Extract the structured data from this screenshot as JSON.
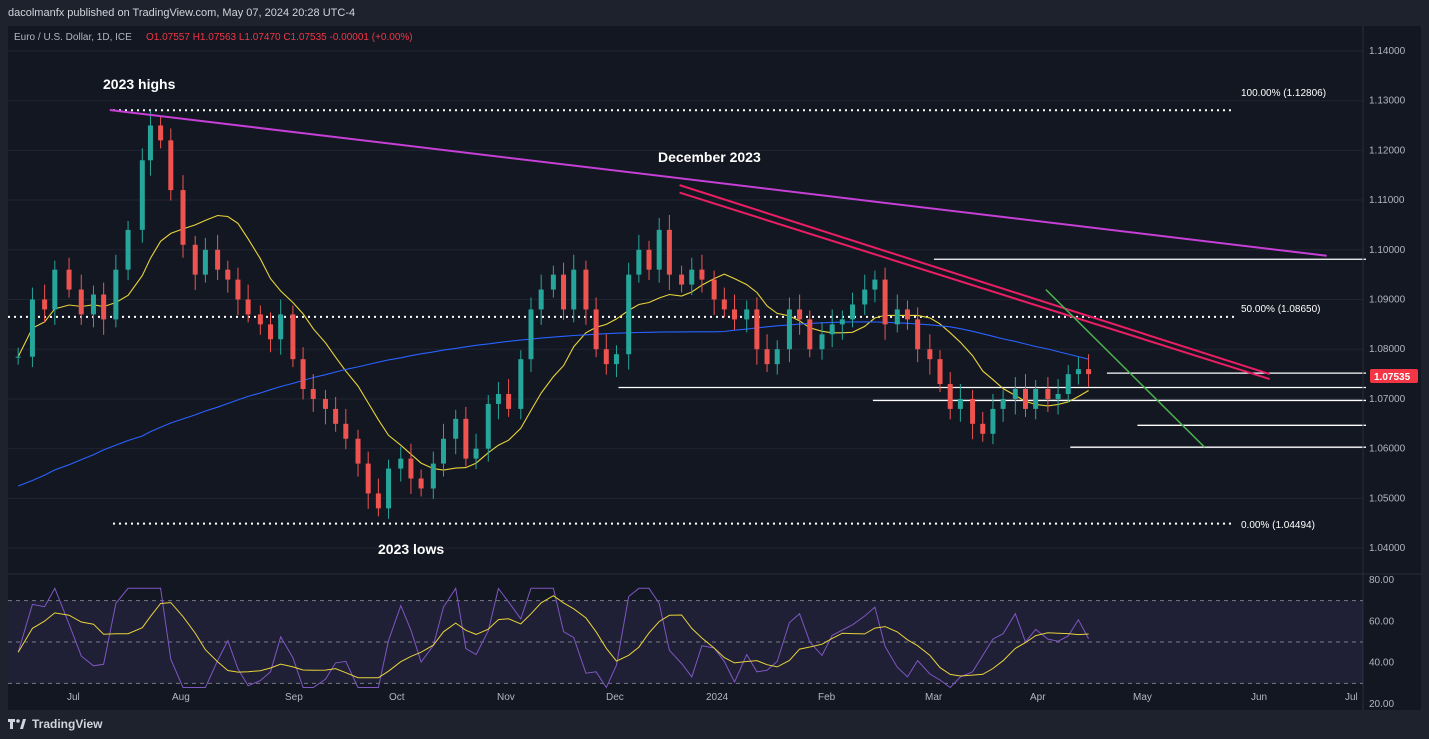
{
  "header": {
    "publisher": "dacolmanfx published on TradingView.com, May 07, 2024 20:28 UTC-4"
  },
  "legend": {
    "symbol": "Euro / U.S. Dollar, 1D, ICE",
    "ohlc": "O1.07557 H1.07563 L1.07470 C1.07535 -0.00001 (+0.00%)",
    "symbol_color": "#b2b5be",
    "value_color": "#f23645"
  },
  "footer": {
    "brand": "TradingView"
  },
  "colors": {
    "up": "#26a69a",
    "down": "#ef5350",
    "sma50": "#e8d33b",
    "sma200": "#2962ff",
    "long_trend": "#c63fd6",
    "channel": "#e91e63",
    "green_trend": "#4caf50",
    "rsi": "#7e57c2",
    "rsi_ma": "#e8d33b",
    "price_label_bg": "#f23645"
  },
  "chart_data": {
    "type": "candlestick",
    "title": "Euro / U.S. Dollar, 1D, ICE",
    "price_axis": {
      "min": 1.035,
      "max": 1.145,
      "ticks": [
        "1.14000",
        "1.13000",
        "1.12000",
        "1.11000",
        "1.10000",
        "1.09000",
        "1.08000",
        "1.07000",
        "1.06000",
        "1.05000",
        "1.04000"
      ]
    },
    "time_axis": {
      "labels": [
        "Jul",
        "Aug",
        "Sep",
        "Oct",
        "Nov",
        "Dec",
        "2024",
        "Feb",
        "Mar",
        "Apr",
        "May",
        "Jun",
        "Jul"
      ]
    },
    "current_price": "1.07535",
    "annotations": [
      "2023 highs",
      "December 2023",
      "2023 lows"
    ],
    "fibonacci": [
      {
        "label": "100.00% (1.12806)",
        "value": 1.12806
      },
      {
        "label": "50.00% (1.08650)",
        "value": 1.0865
      },
      {
        "label": "0.00% (1.04494)",
        "value": 1.04494
      }
    ],
    "horizontal_levels": [
      1.0981,
      1.0752,
      1.0723,
      1.0697,
      1.0647,
      1.0603
    ],
    "approx_closes": [
      [
        5,
        1.0785
      ],
      [
        12,
        1.09
      ],
      [
        18,
        1.088
      ],
      [
        23,
        1.096
      ],
      [
        30,
        1.092
      ],
      [
        36,
        1.087
      ],
      [
        42,
        1.091
      ],
      [
        47,
        1.086
      ],
      [
        53,
        1.096
      ],
      [
        59,
        1.104
      ],
      [
        66,
        1.118
      ],
      [
        70,
        1.125
      ],
      [
        75,
        1.122
      ],
      [
        80,
        1.112
      ],
      [
        86,
        1.101
      ],
      [
        92,
        1.095
      ],
      [
        97,
        1.1
      ],
      [
        103,
        1.096
      ],
      [
        108,
        1.094
      ],
      [
        113,
        1.09
      ],
      [
        118,
        1.087
      ],
      [
        124,
        1.085
      ],
      [
        129,
        1.082
      ],
      [
        134,
        1.087
      ],
      [
        140,
        1.078
      ],
      [
        145,
        1.072
      ],
      [
        150,
        1.07
      ],
      [
        156,
        1.068
      ],
      [
        161,
        1.065
      ],
      [
        166,
        1.062
      ],
      [
        172,
        1.057
      ],
      [
        177,
        1.051
      ],
      [
        182,
        1.048
      ],
      [
        187,
        1.056
      ],
      [
        193,
        1.058
      ],
      [
        198,
        1.054
      ],
      [
        203,
        1.052
      ],
      [
        209,
        1.057
      ],
      [
        214,
        1.062
      ],
      [
        220,
        1.066
      ],
      [
        225,
        1.058
      ],
      [
        230,
        1.06
      ],
      [
        236,
        1.069
      ],
      [
        241,
        1.071
      ],
      [
        246,
        1.068
      ],
      [
        252,
        1.078
      ],
      [
        257,
        1.088
      ],
      [
        262,
        1.092
      ],
      [
        268,
        1.095
      ],
      [
        273,
        1.088
      ],
      [
        278,
        1.096
      ],
      [
        284,
        1.088
      ],
      [
        289,
        1.08
      ],
      [
        294,
        1.077
      ],
      [
        299,
        1.079
      ],
      [
        305,
        1.095
      ],
      [
        310,
        1.1
      ],
      [
        315,
        1.096
      ],
      [
        320,
        1.104
      ],
      [
        325,
        1.095
      ],
      [
        331,
        1.093
      ],
      [
        336,
        1.096
      ],
      [
        341,
        1.094
      ],
      [
        347,
        1.09
      ],
      [
        352,
        1.088
      ],
      [
        357,
        1.086
      ],
      [
        363,
        1.088
      ],
      [
        368,
        1.08
      ],
      [
        373,
        1.077
      ],
      [
        378,
        1.08
      ],
      [
        384,
        1.088
      ],
      [
        389,
        1.086
      ],
      [
        394,
        1.08
      ],
      [
        400,
        1.083
      ],
      [
        405,
        1.085
      ],
      [
        410,
        1.086
      ],
      [
        415,
        1.089
      ],
      [
        421,
        1.092
      ],
      [
        426,
        1.094
      ],
      [
        431,
        1.085
      ],
      [
        437,
        1.088
      ],
      [
        442,
        1.086
      ],
      [
        447,
        1.08
      ],
      [
        453,
        1.078
      ],
      [
        458,
        1.073
      ],
      [
        463,
        1.068
      ],
      [
        468,
        1.07
      ],
      [
        474,
        1.065
      ],
      [
        479,
        1.063
      ],
      [
        484,
        1.068
      ],
      [
        489,
        1.07
      ],
      [
        495,
        1.072
      ],
      [
        500,
        1.068
      ],
      [
        505,
        1.072
      ],
      [
        511,
        1.07
      ],
      [
        516,
        1.071
      ],
      [
        521,
        1.075
      ],
      [
        526,
        1.076
      ],
      [
        531,
        1.075
      ]
    ],
    "indicators": [
      {
        "name": "SMA 50",
        "color": "#e8d33b"
      },
      {
        "name": "SMA 200",
        "color": "#2962ff"
      }
    ],
    "rsi": {
      "axis_ticks": [
        "80.00",
        "60.00",
        "40.00",
        "20.00"
      ],
      "upper_band": 70,
      "lower_band": 30,
      "last_value": 51.5
    }
  }
}
